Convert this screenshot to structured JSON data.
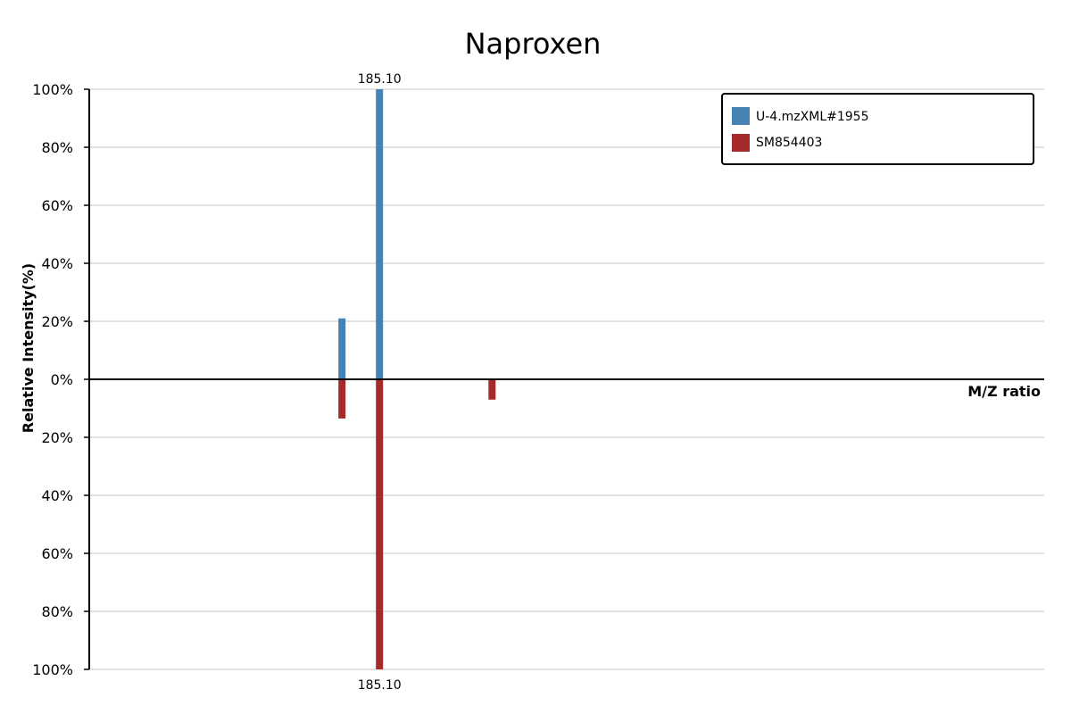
{
  "chart_data": {
    "type": "bar",
    "title": "Naproxen",
    "xlabel": "M/Z ratio",
    "ylabel": "Relative Intensity(%)",
    "ylim_top": [
      0,
      100
    ],
    "ylim_bottom": [
      0,
      100
    ],
    "yticks_top": [
      "100%",
      "80%",
      "60%",
      "40%",
      "20%",
      "0%"
    ],
    "yticks_bottom": [
      "20%",
      "40%",
      "60%",
      "80%",
      "100%"
    ],
    "grid": true,
    "legend_position": "top-right",
    "series": [
      {
        "name": "U-4.mzXML#1955",
        "direction": "up",
        "color": "#4682b4",
        "points": [
          {
            "mz": 174.1,
            "intensity": 21
          },
          {
            "mz": 185.1,
            "intensity": 100
          }
        ]
      },
      {
        "name": "SM854403",
        "direction": "down",
        "color": "#a52a2a",
        "points": [
          {
            "mz": 174.1,
            "intensity": 13.5
          },
          {
            "mz": 185.1,
            "intensity": 100
          },
          {
            "mz": 218.1,
            "intensity": 7
          }
        ]
      }
    ],
    "annotations": [
      {
        "series": 0,
        "point": 1,
        "text": "185.10"
      },
      {
        "series": 1,
        "point": 1,
        "text": "185.10"
      }
    ]
  }
}
